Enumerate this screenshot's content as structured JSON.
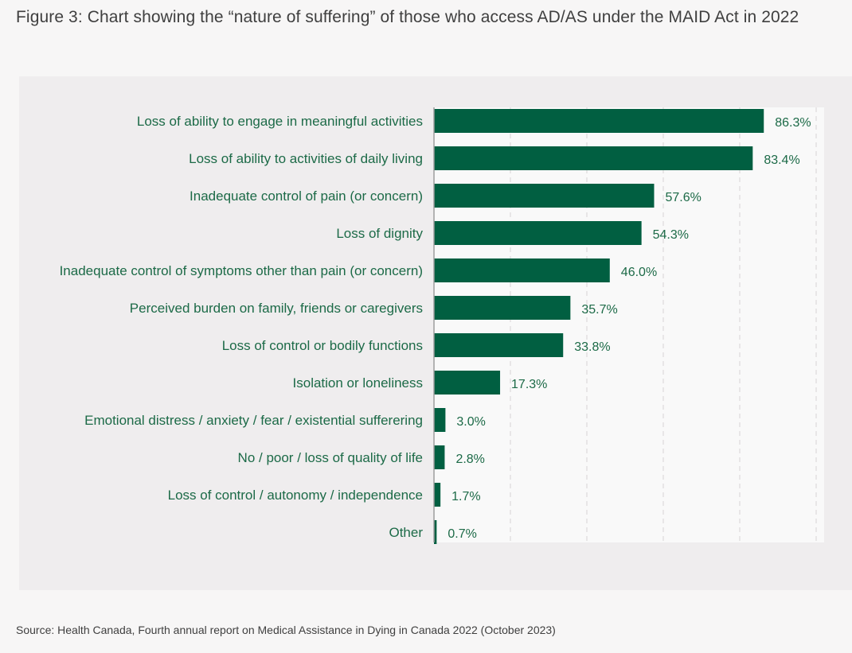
{
  "figure": {
    "title": "Figure 3: Chart showing the “nature of suffering” of those who access AD/AS under the MAID Act in 2022",
    "source": "Source: Health Canada, Fourth annual report on Medical Assistance in Dying in Canada 2022 (October 2023)"
  },
  "colors": {
    "bar": "#015f41",
    "label": "#1c6a47",
    "panel": "#efedee",
    "plot": "#f9f9f9"
  },
  "chart_data": {
    "type": "bar",
    "orientation": "horizontal",
    "categories": [
      "Loss of ability to engage in meaningful activities",
      "Loss of ability to activities of daily living",
      "Inadequate control of pain (or concern)",
      "Loss of dignity",
      "Inadequate control of symptoms other than pain (or concern)",
      "Perceived burden on family, friends or caregivers",
      "Loss of control or bodily functions",
      "Isolation or loneliness",
      "Emotional distress / anxiety / fear / existential sufferering",
      "No / poor / loss of quality of life",
      "Loss of control / autonomy / independence",
      "Other"
    ],
    "values": [
      86.3,
      83.4,
      57.6,
      54.3,
      46.0,
      35.7,
      33.8,
      17.3,
      3.0,
      2.8,
      1.7,
      0.7
    ],
    "value_labels": [
      "86.3%",
      "83.4%",
      "57.6%",
      "54.3%",
      "46.0%",
      "35.7%",
      "33.8%",
      "17.3%",
      "3.0%",
      "2.8%",
      "1.7%",
      "0.7%"
    ],
    "xlim": [
      0,
      100
    ],
    "gridlines": [
      20,
      40,
      60,
      80,
      100
    ],
    "grid": true,
    "legend": "none",
    "xlabel": "",
    "ylabel": ""
  }
}
